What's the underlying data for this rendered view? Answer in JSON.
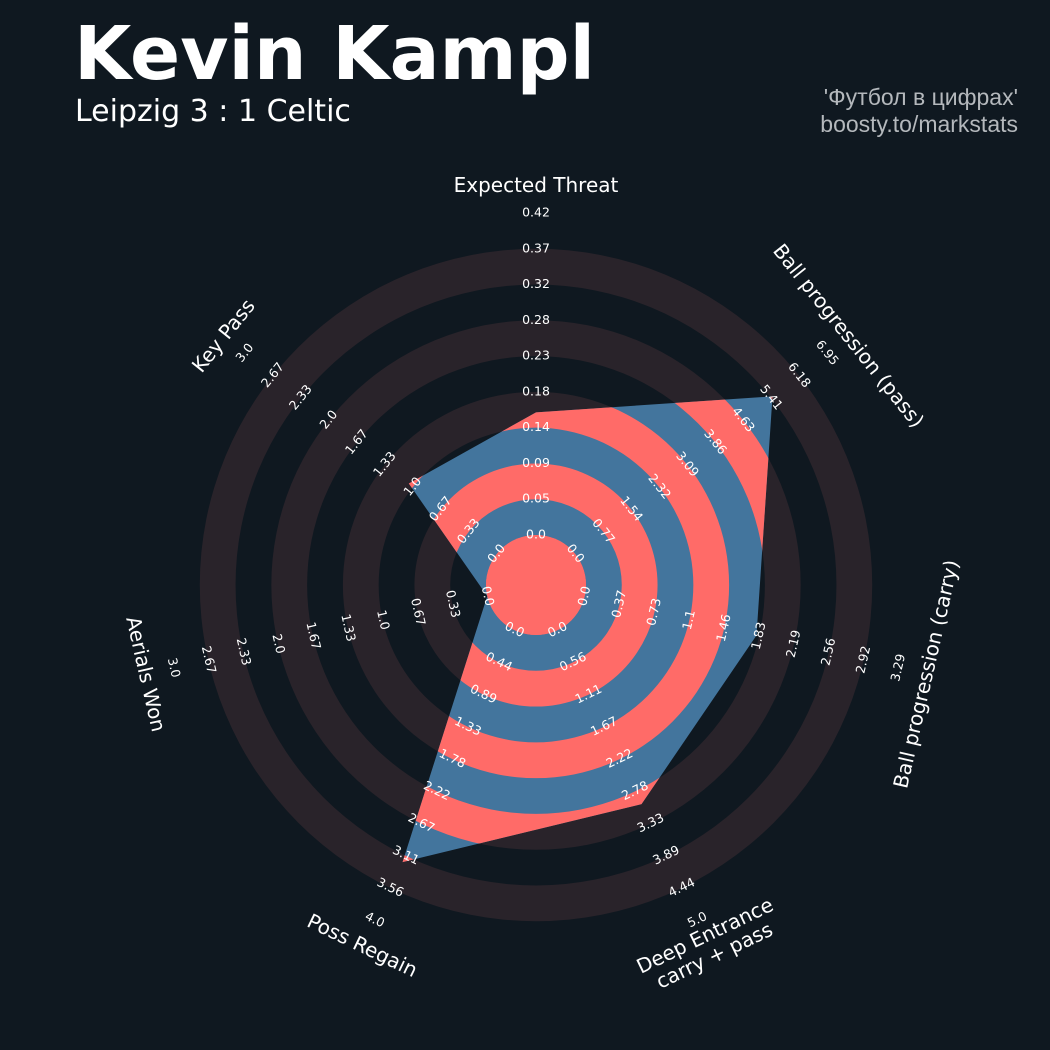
{
  "header": {
    "title": "Kevin Kampl",
    "subtitle": "Leipzig 3 : 1 Celtic",
    "credit_line1": "'Футбол в цифрах'",
    "credit_line2": "boosty.to/markstats"
  },
  "colors": {
    "background": "#0f1820",
    "ring_band": "#29232a",
    "shape_fill_a": "#43759d",
    "shape_fill_b": "#ff6b68",
    "text": "#ffffff"
  },
  "chart_data": {
    "type": "radar",
    "grid": true,
    "axes": [
      {
        "label": "Expected Threat",
        "ticks": [
          "0.0",
          "0.05",
          "0.09",
          "0.14",
          "0.18",
          "0.23",
          "0.28",
          "0.32",
          "0.37",
          "0.42"
        ],
        "min": 0.0,
        "max": 0.42
      },
      {
        "label": "Ball progression (pass)",
        "ticks": [
          "0.0",
          "0.77",
          "1.54",
          "2.32",
          "3.09",
          "3.86",
          "4.63",
          "5.41",
          "6.18",
          "6.95"
        ],
        "min": 0.0,
        "max": 6.95
      },
      {
        "label": "Ball progression (carry)",
        "ticks": [
          "0.0",
          "0.37",
          "0.73",
          "1.1",
          "1.46",
          "1.83",
          "2.19",
          "2.56",
          "2.92",
          "3.29"
        ],
        "min": 0.0,
        "max": 3.29
      },
      {
        "label": "Deep Entrance\ncarry + pass",
        "ticks": [
          "0.0",
          "0.56",
          "1.11",
          "1.67",
          "2.22",
          "2.78",
          "3.33",
          "3.89",
          "4.44",
          "5.0"
        ],
        "min": 0.0,
        "max": 5.0
      },
      {
        "label": "Poss Regain",
        "ticks": [
          "0.0",
          "0.44",
          "0.89",
          "1.33",
          "1.78",
          "2.22",
          "2.67",
          "3.11",
          "3.56",
          "4.0"
        ],
        "min": 0.0,
        "max": 4.0
      },
      {
        "label": "Aerials Won",
        "ticks": [
          "0.0",
          "0.33",
          "0.67",
          "1.0",
          "1.33",
          "1.67",
          "2.0",
          "2.33",
          "2.67",
          "3.0"
        ],
        "min": 0.0,
        "max": 3.0
      },
      {
        "label": "Key Pass",
        "ticks": [
          "0.0",
          "0.33",
          "0.67",
          "1.0",
          "1.33",
          "1.67",
          "2.0",
          "2.33",
          "2.67",
          "3.0"
        ],
        "min": 0.0,
        "max": 3.0
      }
    ],
    "series": [
      {
        "values": [
          0.16,
          5.45,
          1.8,
          3.0,
          3.2,
          0.0,
          1.05
        ]
      }
    ]
  }
}
